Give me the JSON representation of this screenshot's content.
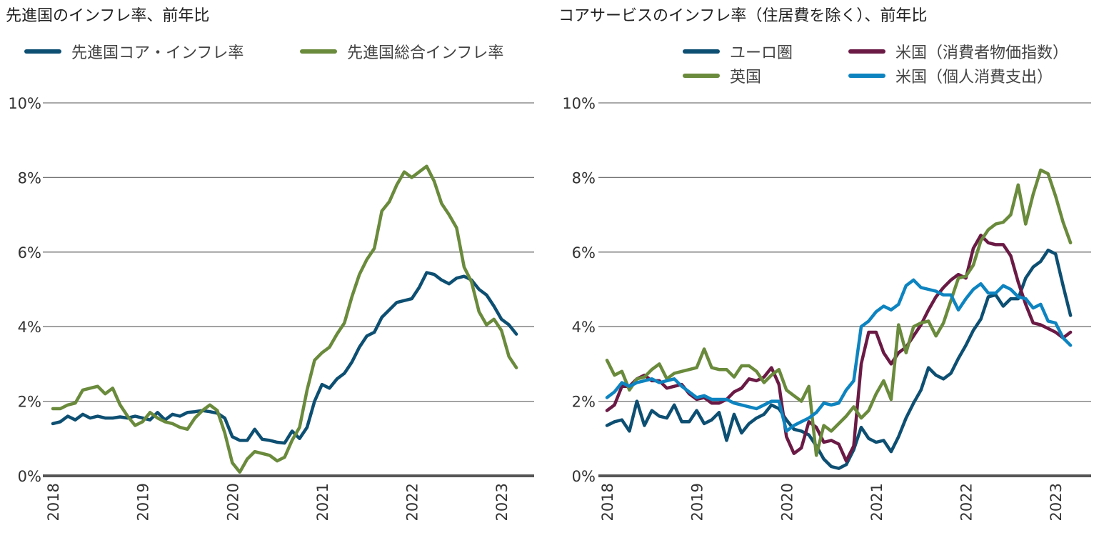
{
  "chart_data": [
    {
      "type": "line",
      "title": "先進国のインフレ率、前年比",
      "x_start": "2018-01",
      "x_frequency": "monthly",
      "x_ticks": [
        "2018",
        "2019",
        "2020",
        "2021",
        "2022",
        "2023"
      ],
      "y_ticks": [
        "0%",
        "2%",
        "4%",
        "6%",
        "8%",
        "10%"
      ],
      "ylim": [
        0,
        10
      ],
      "grid": true,
      "legend_position": "top",
      "series": [
        {
          "name": "先進国コア・インフレ率",
          "color": "#0d4f72",
          "values": [
            1.4,
            1.45,
            1.6,
            1.5,
            1.65,
            1.55,
            1.6,
            1.55,
            1.55,
            1.58,
            1.55,
            1.6,
            1.55,
            1.5,
            1.7,
            1.5,
            1.65,
            1.6,
            1.7,
            1.72,
            1.75,
            1.72,
            1.68,
            1.55,
            1.05,
            0.95,
            0.95,
            1.25,
            0.98,
            0.95,
            0.9,
            0.88,
            1.2,
            1.0,
            1.3,
            2.0,
            2.45,
            2.35,
            2.6,
            2.75,
            3.05,
            3.45,
            3.75,
            3.85,
            4.25,
            4.45,
            4.65,
            4.7,
            4.75,
            5.05,
            5.45,
            5.4,
            5.25,
            5.15,
            5.3,
            5.35,
            5.25,
            5.0,
            4.85,
            4.55,
            4.2,
            4.05,
            3.8
          ]
        },
        {
          "name": "先進国総合インフレ率",
          "color": "#6a8a3c",
          "values": [
            1.8,
            1.8,
            1.9,
            1.95,
            2.3,
            2.35,
            2.4,
            2.2,
            2.35,
            1.9,
            1.6,
            1.35,
            1.45,
            1.7,
            1.55,
            1.45,
            1.4,
            1.3,
            1.25,
            1.55,
            1.75,
            1.9,
            1.75,
            1.15,
            0.35,
            0.1,
            0.45,
            0.65,
            0.6,
            0.55,
            0.4,
            0.5,
            0.95,
            1.3,
            2.3,
            3.1,
            3.3,
            3.45,
            3.8,
            4.1,
            4.8,
            5.4,
            5.8,
            6.1,
            7.1,
            7.35,
            7.8,
            8.15,
            8.0,
            8.15,
            8.3,
            7.9,
            7.3,
            7.0,
            6.65,
            5.6,
            5.2,
            4.4,
            4.05,
            4.2,
            3.9,
            3.2,
            2.9
          ]
        }
      ]
    },
    {
      "type": "line",
      "title": "コアサービスのインフレ率（住居費を除く）、前年比",
      "x_start": "2018-01",
      "x_frequency": "monthly",
      "x_ticks": [
        "2018",
        "2019",
        "2020",
        "2021",
        "2022",
        "2023"
      ],
      "y_ticks": [
        "0%",
        "2%",
        "4%",
        "6%",
        "8%",
        "10%"
      ],
      "ylim": [
        0,
        10
      ],
      "grid": true,
      "legend_position": "top",
      "series": [
        {
          "name": "ユーロ圏",
          "color": "#0d4f72",
          "values": [
            1.35,
            1.45,
            1.5,
            1.2,
            2.0,
            1.35,
            1.75,
            1.6,
            1.55,
            1.9,
            1.45,
            1.45,
            1.75,
            1.4,
            1.5,
            1.7,
            0.95,
            1.65,
            1.15,
            1.4,
            1.55,
            1.65,
            1.9,
            1.8,
            1.5,
            1.25,
            1.2,
            1.1,
            0.8,
            0.45,
            0.25,
            0.2,
            0.3,
            0.7,
            1.3,
            1.0,
            0.9,
            0.95,
            0.65,
            1.05,
            1.55,
            1.95,
            2.3,
            2.9,
            2.7,
            2.6,
            2.75,
            3.15,
            3.5,
            3.9,
            4.2,
            4.8,
            4.85,
            4.55,
            4.75,
            4.75,
            5.3,
            5.6,
            5.75,
            6.05,
            5.95,
            5.1,
            4.3
          ]
        },
        {
          "name": "米国（消費者物価指数）",
          "color": "#6a1a45",
          "values": [
            1.75,
            1.9,
            2.4,
            2.4,
            2.6,
            2.7,
            2.55,
            2.55,
            2.35,
            2.4,
            2.45,
            2.2,
            2.05,
            2.1,
            1.95,
            1.95,
            2.05,
            2.25,
            2.35,
            2.6,
            2.55,
            2.65,
            2.9,
            2.45,
            1.05,
            0.6,
            0.75,
            1.45,
            1.3,
            0.9,
            0.95,
            0.85,
            0.4,
            0.8,
            3.0,
            3.85,
            3.85,
            3.3,
            3.0,
            3.3,
            3.45,
            3.75,
            4.05,
            4.45,
            4.8,
            5.05,
            5.25,
            5.4,
            5.3,
            6.1,
            6.45,
            6.25,
            6.2,
            6.2,
            5.9,
            5.2,
            4.6,
            4.1,
            4.05,
            3.95,
            3.85,
            3.7,
            3.85
          ]
        },
        {
          "name": "英国",
          "color": "#6a8a3c",
          "values": [
            3.1,
            2.7,
            2.8,
            2.3,
            2.6,
            2.65,
            2.85,
            3.0,
            2.6,
            2.75,
            2.8,
            2.85,
            2.9,
            3.4,
            2.9,
            2.85,
            2.85,
            2.65,
            2.95,
            2.95,
            2.8,
            2.5,
            2.7,
            2.85,
            2.3,
            2.15,
            2.0,
            2.4,
            0.55,
            1.35,
            1.2,
            1.4,
            1.6,
            1.85,
            1.55,
            1.75,
            2.2,
            2.55,
            2.05,
            4.05,
            3.3,
            4.0,
            4.1,
            4.15,
            3.75,
            4.1,
            4.7,
            5.3,
            5.35,
            5.65,
            6.3,
            6.6,
            6.75,
            6.8,
            7.0,
            7.8,
            6.75,
            7.55,
            8.2,
            8.1,
            7.5,
            6.8,
            6.25
          ]
        },
        {
          "name": "米国（個人消費支出）",
          "color": "#0d84c0",
          "values": [
            2.1,
            2.25,
            2.5,
            2.4,
            2.5,
            2.55,
            2.6,
            2.5,
            2.55,
            2.6,
            2.4,
            2.25,
            2.1,
            2.15,
            2.05,
            2.05,
            2.05,
            1.95,
            1.9,
            1.85,
            1.8,
            1.9,
            2.0,
            2.0,
            1.2,
            1.35,
            1.45,
            1.55,
            1.7,
            1.95,
            1.9,
            1.95,
            2.3,
            2.55,
            4.0,
            4.15,
            4.4,
            4.55,
            4.45,
            4.6,
            5.1,
            5.25,
            5.05,
            5.0,
            4.95,
            4.85,
            4.85,
            4.45,
            4.75,
            5.0,
            5.15,
            4.9,
            4.9,
            5.1,
            5.0,
            4.8,
            4.75,
            4.5,
            4.6,
            4.15,
            4.1,
            3.7,
            3.5
          ]
        }
      ]
    }
  ]
}
